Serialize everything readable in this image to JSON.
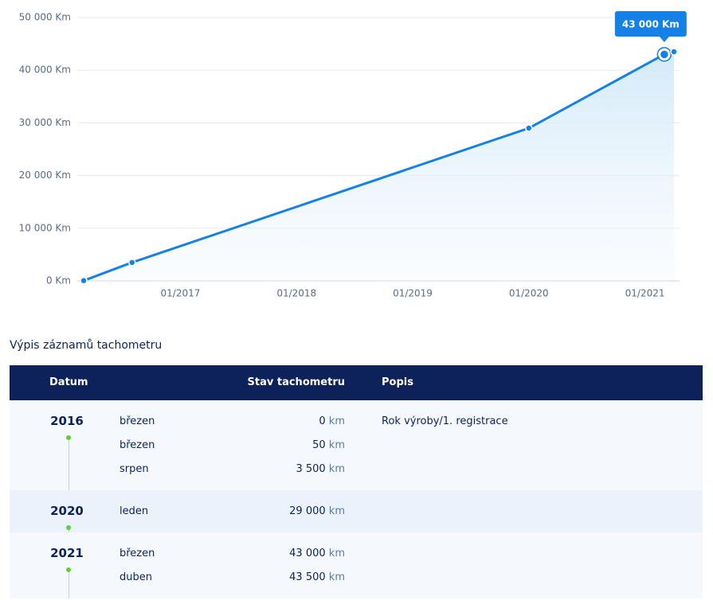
{
  "chart_data": {
    "type": "line",
    "x": [
      "03/2016",
      "03/2016",
      "08/2016",
      "01/2020",
      "03/2021",
      "04/2021"
    ],
    "values": [
      0,
      50,
      3500,
      29000,
      43000,
      43500
    ],
    "color": "#1581e6",
    "xlim": [
      "03/2016",
      "04/2021"
    ],
    "xticks": [
      "01/2017",
      "01/2018",
      "01/2019",
      "01/2020",
      "01/2021"
    ],
    "ylim": [
      0,
      50000
    ],
    "yticks": [
      {
        "value": 0,
        "label": "0 Km"
      },
      {
        "value": 10000,
        "label": "10 000 Km"
      },
      {
        "value": 20000,
        "label": "20 000 Km"
      },
      {
        "value": 30000,
        "label": "30 000 Km"
      },
      {
        "value": 40000,
        "label": "40 000 Km"
      },
      {
        "value": 50000,
        "label": "50 000 Km"
      }
    ],
    "grid": true,
    "tooltip": {
      "label": "43 000 Km",
      "value": 43000
    }
  },
  "section_title": "Výpis záznamů tachometru",
  "table": {
    "headers": [
      "Datum",
      "Stav tachometru",
      "Popis"
    ],
    "groups": [
      {
        "year": "2016",
        "rows": [
          {
            "month": "březen",
            "value": "0",
            "unit": "km",
            "note": "Rok výroby/1. registrace"
          },
          {
            "month": "březen",
            "value": "50",
            "unit": "km"
          },
          {
            "month": "srpen",
            "value": "3 500",
            "unit": "km"
          }
        ]
      },
      {
        "year": "2020",
        "rows": [
          {
            "month": "leden",
            "value": "29 000",
            "unit": "km"
          }
        ]
      },
      {
        "year": "2021",
        "rows": [
          {
            "month": "březen",
            "value": "43 000",
            "unit": "km"
          },
          {
            "month": "duben",
            "value": "43 500",
            "unit": "km"
          }
        ]
      }
    ]
  }
}
